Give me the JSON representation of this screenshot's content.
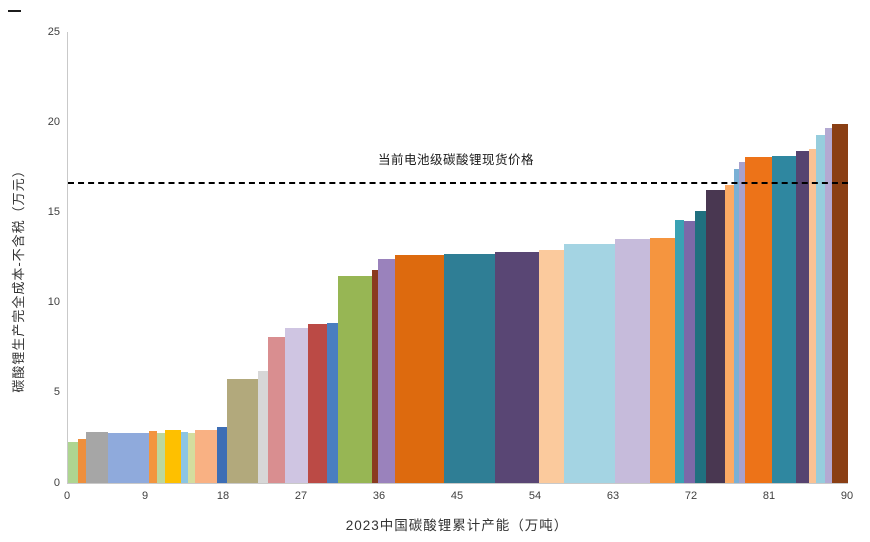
{
  "chart_data": {
    "type": "bar",
    "variant": "variable-width-cost-curve",
    "title": "",
    "xlabel": "2023中国碳酸锂累计产能（万吨）",
    "ylabel": "碳酸锂生产完全成本-不含税（万元）",
    "xlim": [
      0,
      90
    ],
    "ylim": [
      0,
      25
    ],
    "x_ticks": [
      0,
      9,
      18,
      27,
      36,
      45,
      54,
      63,
      72,
      81,
      90
    ],
    "y_ticks": [
      0,
      5,
      10,
      15,
      20,
      25
    ],
    "grid": false,
    "reference_line": {
      "value": 16.7,
      "label": "当前电池级碳酸锂现货价格",
      "style": "dashed",
      "color": "#000000"
    },
    "bars": [
      {
        "from": 0,
        "to": 1.2,
        "value": 2.3,
        "color": "#aed591"
      },
      {
        "from": 1.2,
        "to": 2.1,
        "value": 2.45,
        "color": "#ee8f3d"
      },
      {
        "from": 2.1,
        "to": 4.6,
        "value": 2.85,
        "color": "#a6a6a6"
      },
      {
        "from": 4.6,
        "to": 9.3,
        "value": 2.8,
        "color": "#8faadc"
      },
      {
        "from": 9.3,
        "to": 10.3,
        "value": 2.9,
        "color": "#f2953f"
      },
      {
        "from": 10.3,
        "to": 11.2,
        "value": 2.75,
        "color": "#bcd79e"
      },
      {
        "from": 11.2,
        "to": 13.0,
        "value": 2.95,
        "color": "#fec000"
      },
      {
        "from": 13.0,
        "to": 13.9,
        "value": 2.85,
        "color": "#8cc5e3"
      },
      {
        "from": 13.9,
        "to": 14.7,
        "value": 2.8,
        "color": "#d4dd9e"
      },
      {
        "from": 14.7,
        "to": 17.2,
        "value": 2.95,
        "color": "#f9b183"
      },
      {
        "from": 17.2,
        "to": 18.4,
        "value": 3.1,
        "color": "#3d6eb5"
      },
      {
        "from": 18.4,
        "to": 21.9,
        "value": 5.75,
        "color": "#b2a97c"
      },
      {
        "from": 21.9,
        "to": 23.1,
        "value": 6.2,
        "color": "#d7d7d7"
      },
      {
        "from": 23.1,
        "to": 25.0,
        "value": 8.1,
        "color": "#d98e90"
      },
      {
        "from": 25.0,
        "to": 27.7,
        "value": 8.6,
        "color": "#cfc5e2"
      },
      {
        "from": 27.7,
        "to": 29.9,
        "value": 8.8,
        "color": "#bb4a45"
      },
      {
        "from": 29.9,
        "to": 31.1,
        "value": 8.85,
        "color": "#4a7ec0"
      },
      {
        "from": 31.1,
        "to": 35.1,
        "value": 11.45,
        "color": "#97b654"
      },
      {
        "from": 35.1,
        "to": 35.8,
        "value": 11.8,
        "color": "#8a3a20"
      },
      {
        "from": 35.8,
        "to": 37.7,
        "value": 12.4,
        "color": "#9a82bc"
      },
      {
        "from": 37.7,
        "to": 43.4,
        "value": 12.65,
        "color": "#dd6a0e"
      },
      {
        "from": 43.4,
        "to": 49.3,
        "value": 12.7,
        "color": "#2f7e95"
      },
      {
        "from": 49.3,
        "to": 54.4,
        "value": 12.8,
        "color": "#594674"
      },
      {
        "from": 54.4,
        "to": 57.2,
        "value": 12.9,
        "color": "#fbca9d"
      },
      {
        "from": 57.2,
        "to": 63.1,
        "value": 13.25,
        "color": "#a4d4e3"
      },
      {
        "from": 63.1,
        "to": 67.2,
        "value": 13.5,
        "color": "#c6bbdb"
      },
      {
        "from": 67.2,
        "to": 70.0,
        "value": 13.6,
        "color": "#f5953f"
      },
      {
        "from": 70.0,
        "to": 71.1,
        "value": 14.6,
        "color": "#3aa2b4"
      },
      {
        "from": 71.1,
        "to": 72.4,
        "value": 14.5,
        "color": "#7c69a8"
      },
      {
        "from": 72.4,
        "to": 73.6,
        "value": 15.1,
        "color": "#20707f"
      },
      {
        "from": 73.6,
        "to": 75.8,
        "value": 16.25,
        "color": "#493751"
      },
      {
        "from": 75.8,
        "to": 76.9,
        "value": 16.5,
        "color": "#fbaa64"
      },
      {
        "from": 76.9,
        "to": 77.4,
        "value": 17.4,
        "color": "#7ab0d5"
      },
      {
        "from": 77.4,
        "to": 78.1,
        "value": 17.8,
        "color": "#a7a1cd"
      },
      {
        "from": 78.1,
        "to": 81.2,
        "value": 18.05,
        "color": "#ed7318"
      },
      {
        "from": 81.2,
        "to": 84.0,
        "value": 18.1,
        "color": "#2f87a0"
      },
      {
        "from": 84.0,
        "to": 85.5,
        "value": 18.4,
        "color": "#564370"
      },
      {
        "from": 85.5,
        "to": 86.3,
        "value": 18.5,
        "color": "#fac294"
      },
      {
        "from": 86.3,
        "to": 87.3,
        "value": 19.3,
        "color": "#96cddd"
      },
      {
        "from": 87.3,
        "to": 88.1,
        "value": 19.7,
        "color": "#b3a9d2"
      },
      {
        "from": 88.1,
        "to": 90.0,
        "value": 19.9,
        "color": "#8a3f14"
      }
    ]
  },
  "layout_colors": {
    "axis_line": "#c9c9c9",
    "tick_text": "#404040",
    "title_text": "#333333",
    "annotation_text": "#1a1a1a",
    "background": "#ffffff"
  }
}
